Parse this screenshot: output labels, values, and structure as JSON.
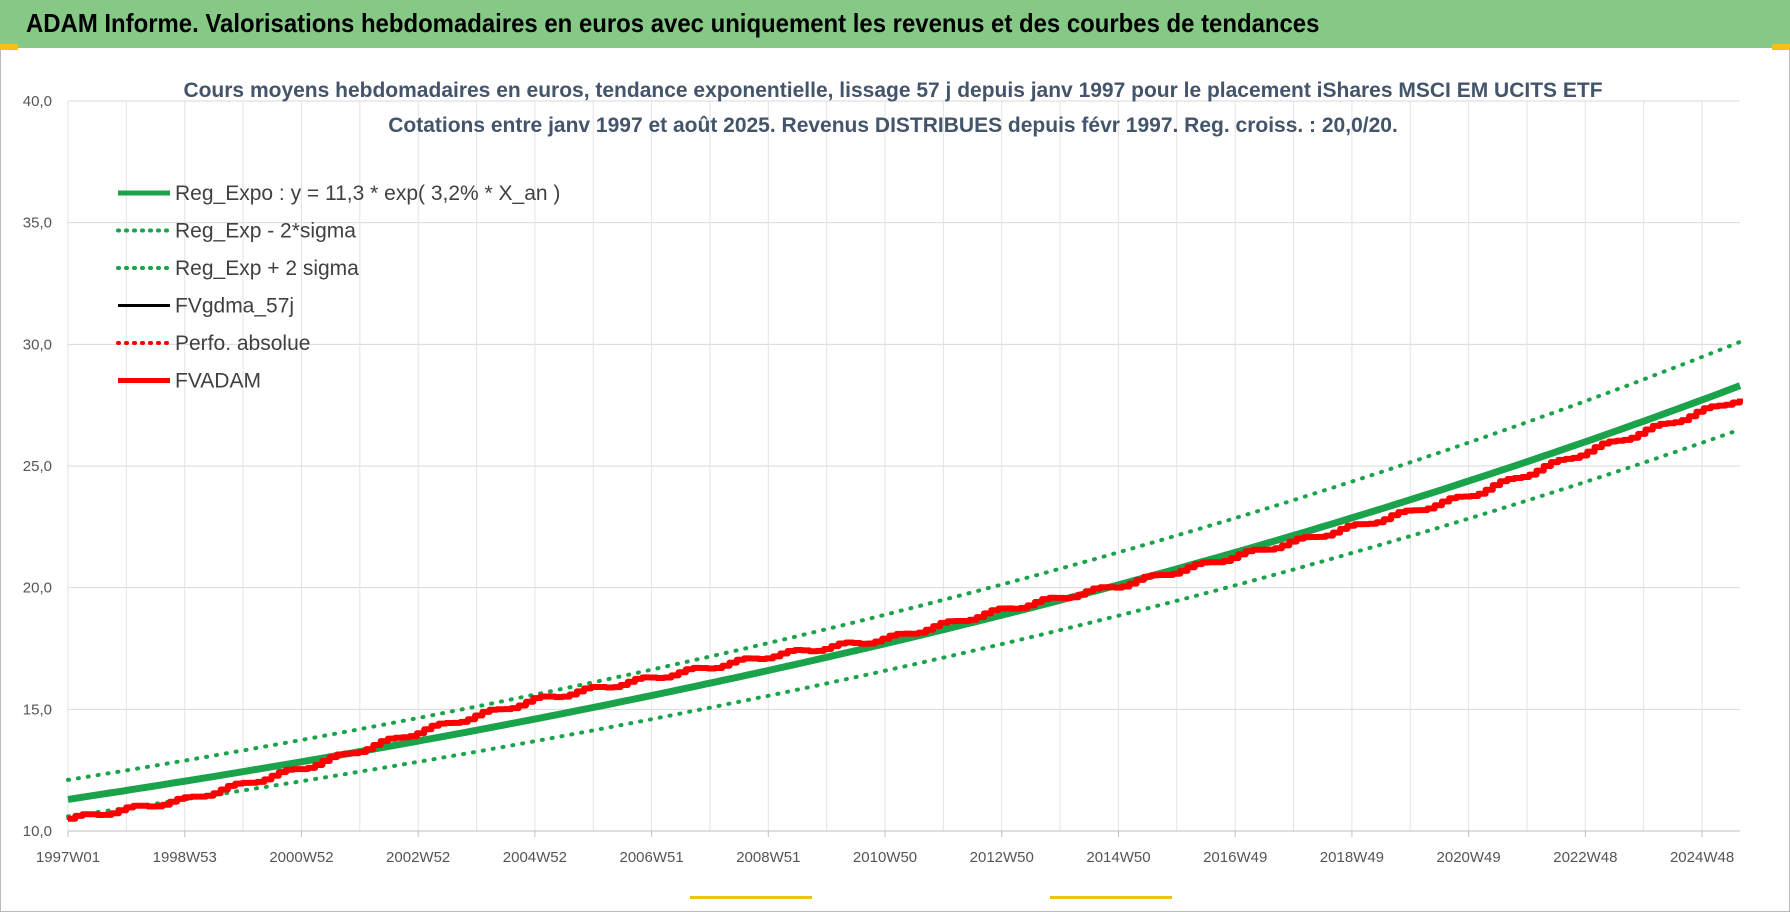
{
  "banner": {
    "title": "ADAM Informe. Valorisations hebdomadaires en euros avec uniquement les revenus et des courbes de tendances",
    "color": "#86c986"
  },
  "chart_data": {
    "type": "line",
    "title": "Cours moyens hebdomadaires en euros, tendance exponentielle, lissage 57 j depuis janv 1997 pour le placement iShares MSCI EM UCITS ETF",
    "subtitle": "Cotations entre janv 1997 et août 2025. Revenus DISTRIBUES depuis févr 1997. Reg. croiss. : 20,0/20.",
    "xlabel": "",
    "ylabel": "",
    "x_range": [
      1997.0,
      2025.65
    ],
    "ylim": [
      10,
      40
    ],
    "y_ticks": [
      "10,0",
      "15,0",
      "20,0",
      "25,0",
      "30,0",
      "35,0",
      "40,0"
    ],
    "x_ticks": [
      {
        "label": "1997W01",
        "x": 1997.0
      },
      {
        "label": "1998W53",
        "x": 1999.0
      },
      {
        "label": "2000W52",
        "x": 2001.0
      },
      {
        "label": "2002W52",
        "x": 2003.0
      },
      {
        "label": "2004W52",
        "x": 2005.0
      },
      {
        "label": "2006W51",
        "x": 2007.0
      },
      {
        "label": "2008W51",
        "x": 2009.0
      },
      {
        "label": "2010W50",
        "x": 2011.0
      },
      {
        "label": "2012W50",
        "x": 2013.0
      },
      {
        "label": "2014W50",
        "x": 2015.0
      },
      {
        "label": "2016W49",
        "x": 2017.0
      },
      {
        "label": "2018W49",
        "x": 2019.0
      },
      {
        "label": "2020W49",
        "x": 2021.0
      },
      {
        "label": "2022W48",
        "x": 2023.0
      },
      {
        "label": "2024W48",
        "x": 2025.0
      }
    ],
    "grid": true,
    "legend_position": "top-left",
    "series": [
      {
        "name": "Reg_Expo : y = 11,3 * exp( 3,2% *  X_an )",
        "color": "#1aa34a",
        "style": "solid",
        "width": 7,
        "x": [
          1997.0,
          2001.0,
          2005.0,
          2009.0,
          2013.0,
          2017.0,
          2021.0,
          2025.65
        ],
        "y": [
          11.3,
          12.8,
          14.6,
          16.6,
          18.8,
          21.4,
          24.2,
          28.3
        ]
      },
      {
        "name": "Reg_Exp - 2*sigma",
        "color": "#1aa34a",
        "style": "dotted",
        "width": 4,
        "x": [
          1997.0,
          2001.0,
          2005.0,
          2009.0,
          2013.0,
          2017.0,
          2021.0,
          2025.65
        ],
        "y": [
          10.6,
          12.0,
          13.6,
          15.5,
          17.6,
          20.0,
          22.7,
          26.5
        ]
      },
      {
        "name": "Reg_Exp + 2 sigma",
        "color": "#1aa34a",
        "style": "dotted",
        "width": 4,
        "x": [
          1997.0,
          2001.0,
          2005.0,
          2009.0,
          2013.0,
          2017.0,
          2021.0,
          2025.65
        ],
        "y": [
          12.1,
          13.7,
          15.6,
          17.7,
          20.0,
          22.8,
          25.8,
          30.1
        ]
      },
      {
        "name": "FVgdma_57j",
        "color": "#000000",
        "style": "solid",
        "width": 3,
        "x": [
          1997.0,
          1999.0,
          2001.0,
          2003.0,
          2005.0,
          2007.0,
          2009.0,
          2011.0,
          2013.0,
          2015.0,
          2017.0,
          2019.0,
          2021.0,
          2023.0,
          2025.65
        ],
        "y": [
          10.5,
          11.3,
          12.6,
          14.1,
          15.4,
          16.3,
          17.2,
          17.9,
          19.1,
          20.1,
          21.3,
          22.5,
          23.8,
          25.6,
          27.8
        ]
      },
      {
        "name": "Perfo. absolue",
        "color": "#ff0000",
        "style": "dotted",
        "width": 3,
        "x": [
          1997.0,
          1999.0,
          2001.0,
          2003.0,
          2005.0,
          2007.0,
          2009.0,
          2011.0,
          2013.0,
          2015.0,
          2017.0,
          2019.0,
          2021.0,
          2023.0,
          2025.65
        ],
        "y": [
          10.5,
          11.3,
          12.6,
          14.1,
          15.4,
          16.3,
          17.2,
          17.9,
          19.1,
          20.1,
          21.3,
          22.5,
          23.8,
          25.6,
          27.8
        ]
      },
      {
        "name": "FVADAM",
        "color": "#ff0000",
        "style": "solid",
        "width": 6,
        "x": [
          1997.0,
          1999.0,
          2001.0,
          2003.0,
          2005.0,
          2007.0,
          2009.0,
          2011.0,
          2013.0,
          2015.0,
          2017.0,
          2019.0,
          2021.0,
          2023.0,
          2025.65
        ],
        "y": [
          10.5,
          11.3,
          12.6,
          14.1,
          15.4,
          16.3,
          17.2,
          17.9,
          19.1,
          20.1,
          21.3,
          22.5,
          23.8,
          25.6,
          27.8
        ]
      }
    ]
  }
}
